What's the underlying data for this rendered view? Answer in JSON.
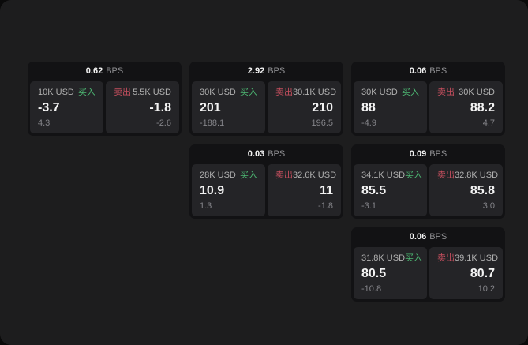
{
  "theme": {
    "outer_bg": "#0a0a0a",
    "window_bg": "#1d1d1e",
    "card_bg": "#121214",
    "panel_bg": "#242427",
    "text_primary": "#f3f3f3",
    "text_label": "#b0b0b0",
    "text_dim": "#85858a",
    "buy_color": "#4db873",
    "sell_color": "#c24e5d",
    "bps_unit_color": "#8f8f92"
  },
  "labels": {
    "bps_unit": "BPS",
    "buy": "买入",
    "sell": "卖出"
  },
  "cards": [
    {
      "bps": "0.62",
      "buy": {
        "amount": "10K USD",
        "value": "-3.7",
        "delta": "4.3"
      },
      "sell": {
        "amount": "5.5K USD",
        "value": "-1.8",
        "delta": "-2.6"
      }
    },
    {
      "bps": "2.92",
      "buy": {
        "amount": "30K USD",
        "value": "201",
        "delta": "-188.1"
      },
      "sell": {
        "amount": "30.1K USD",
        "value": "210",
        "delta": "196.5"
      }
    },
    {
      "bps": "0.06",
      "buy": {
        "amount": "30K USD",
        "value": "88",
        "delta": "-4.9"
      },
      "sell": {
        "amount": "30K USD",
        "value": "88.2",
        "delta": "4.7"
      }
    },
    {
      "bps": "0.03",
      "buy": {
        "amount": "28K USD",
        "value": "10.9",
        "delta": "1.3"
      },
      "sell": {
        "amount": "32.6K USD",
        "value": "11",
        "delta": "-1.8"
      }
    },
    {
      "bps": "0.09",
      "buy": {
        "amount": "34.1K USD",
        "value": "85.5",
        "delta": "-3.1"
      },
      "sell": {
        "amount": "32.8K USD",
        "value": "85.8",
        "delta": "3.0"
      }
    },
    {
      "bps": "0.06",
      "buy": {
        "amount": "31.8K USD",
        "value": "80.5",
        "delta": "-10.8"
      },
      "sell": {
        "amount": "39.1K USD",
        "value": "80.7",
        "delta": "10.2"
      }
    }
  ]
}
